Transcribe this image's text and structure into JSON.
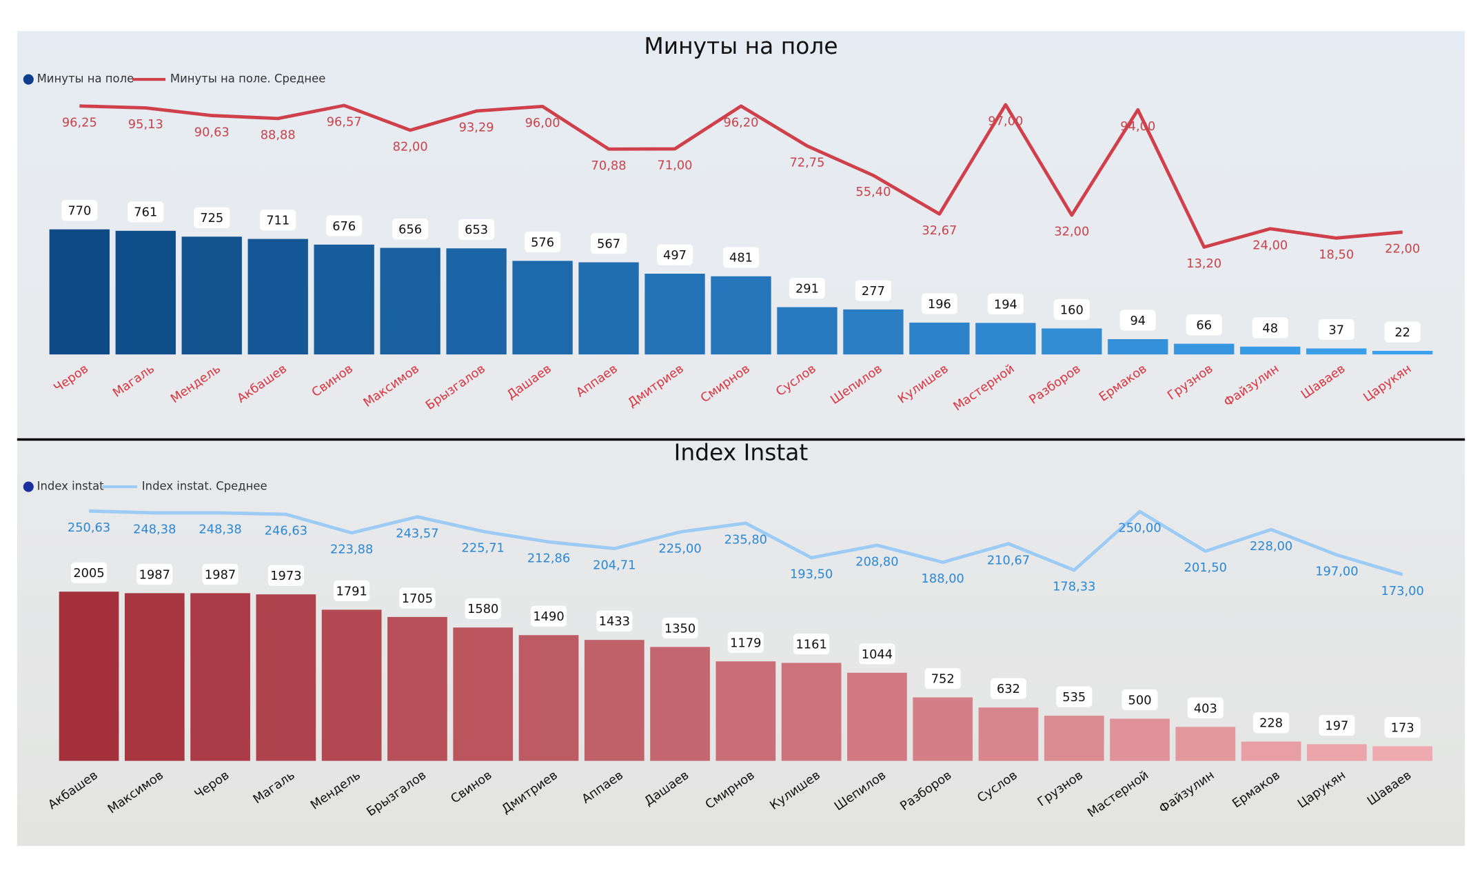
{
  "chart_data": [
    {
      "type": "bar",
      "title": "Минуты на поле",
      "categories": [
        "Черов",
        "Магаль",
        "Мендель",
        "Акбашев",
        "Свинов",
        "Максимов",
        "Брызгалов",
        "Дашаев",
        "Аппаев",
        "Дмитриев",
        "Смирнов",
        "Суслов",
        "Шепилов",
        "Кулишев",
        "Мастерной",
        "Разборов",
        "Ермаков",
        "Грузнов",
        "Файзулин",
        "Шаваев",
        "Царукян"
      ],
      "category_color": "#d9343f",
      "ylim": [
        0,
        1600
      ],
      "y2lim": [
        -50,
        103
      ],
      "series": [
        {
          "name": "Минуты на поле",
          "type": "bar",
          "color": "#0f3f8c",
          "color_gradient": [
            "#0d4a86",
            "#3da2ee"
          ],
          "values": [
            770,
            761,
            725,
            711,
            676,
            656,
            653,
            576,
            567,
            497,
            481,
            291,
            277,
            196,
            194,
            160,
            94,
            66,
            48,
            37,
            22
          ]
        },
        {
          "name": "Минуты на поле. Среднее",
          "type": "line",
          "axis": "y2",
          "color": "#d0404a",
          "label_color": "#c8434b",
          "values": [
            96.25,
            95.13,
            90.63,
            88.88,
            96.57,
            82.0,
            93.29,
            96.0,
            70.88,
            71.0,
            96.2,
            72.75,
            55.4,
            32.67,
            97.0,
            32.0,
            94.0,
            13.2,
            24.0,
            18.5,
            22.0
          ],
          "value_labels": [
            "96,25",
            "95,13",
            "90,63",
            "88,88",
            "96,57",
            "82,00",
            "93,29",
            "96,00",
            "70,88",
            "71,00",
            "96,20",
            "72,75",
            "55,40",
            "32,67",
            "97,00",
            "32,00",
            "94,00",
            "13,20",
            "24,00",
            "18,50",
            "22,00"
          ]
        }
      ]
    },
    {
      "type": "bar",
      "title": "Index Instat",
      "categories": [
        "Акбашев",
        "Максимов",
        "Черов",
        "Магаль",
        "Мендель",
        "Брызгалов",
        "Свинов",
        "Дмитриев",
        "Аппаев",
        "Дашаев",
        "Смирнов",
        "Кулишев",
        "Шепилов",
        "Разборов",
        "Суслов",
        "Грузнов",
        "Мастерной",
        "Файзулин",
        "Ермаков",
        "Царукян",
        "Шаваев"
      ],
      "category_color": "#111111",
      "ylim": [
        0,
        3080
      ],
      "y2lim": [
        -55,
        263
      ],
      "series": [
        {
          "name": "Index instat",
          "type": "bar",
          "color": "#1a2f9c",
          "color_gradient": [
            "#a3303b",
            "#eeaab0"
          ],
          "values": [
            2005,
            1987,
            1987,
            1973,
            1791,
            1705,
            1580,
            1490,
            1433,
            1350,
            1179,
            1161,
            1044,
            752,
            632,
            535,
            500,
            403,
            228,
            197,
            173
          ]
        },
        {
          "name": "Index instat. Среднее",
          "type": "line",
          "axis": "y2",
          "color": "#9ccbf5",
          "label_color": "#2a88d6",
          "values": [
            250.63,
            248.38,
            248.38,
            246.63,
            223.88,
            243.57,
            225.71,
            212.86,
            204.71,
            225.0,
            235.8,
            193.5,
            208.8,
            188.0,
            210.67,
            178.33,
            250.0,
            201.5,
            228.0,
            197.0,
            173.0
          ],
          "value_labels": [
            "250,63",
            "248,38",
            "248,38",
            "246,63",
            "223,88",
            "243,57",
            "225,71",
            "212,86",
            "204,71",
            "225,00",
            "235,80",
            "193,50",
            "208,80",
            "188,00",
            "210,67",
            "178,33",
            "250,00",
            "201,50",
            "228,00",
            "197,00",
            "173,00"
          ]
        }
      ]
    }
  ]
}
